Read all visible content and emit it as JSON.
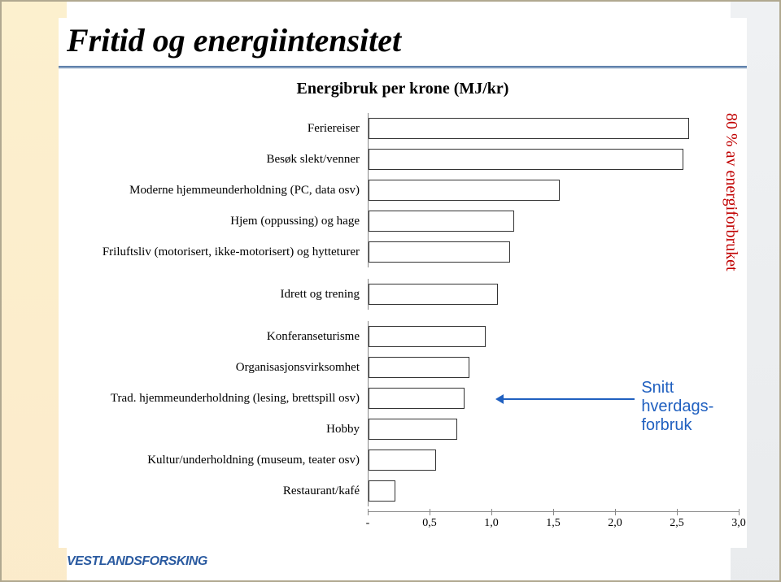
{
  "title": "Fritid og energiintensitet",
  "subtitle": "Energibruk per krone (MJ/kr)",
  "chart": {
    "type": "bar-horizontal",
    "xlim": [
      0,
      3.0
    ],
    "ticks": [
      0,
      0.5,
      1.0,
      1.5,
      2.0,
      2.5,
      3.0
    ],
    "tick_labels": [
      "-",
      "0,5",
      "1,0",
      "1,5",
      "2,0",
      "2,5",
      "3,0"
    ],
    "bar_fill": "#ffffff",
    "bar_border": "#333333",
    "grid_color": "#888888",
    "background_color": "#ffffff",
    "label_fontsize": 15,
    "tick_fontsize": 14,
    "group_gap_after_index": 4,
    "group_gap_after_index2": 5,
    "categories": [
      {
        "label": "Feriereiser",
        "value": 2.6
      },
      {
        "label": "Besøk slekt/venner",
        "value": 2.55
      },
      {
        "label": "Moderne hjemmeunderholdning (PC, data osv)",
        "value": 1.55
      },
      {
        "label": "Hjem (oppussing) og hage",
        "value": 1.18
      },
      {
        "label": "Friluftsliv (motorisert, ikke-motorisert) og hytteturer",
        "value": 1.15
      },
      {
        "label": "Idrett og trening",
        "value": 1.05
      },
      {
        "label": "Konferanseturisme",
        "value": 0.95
      },
      {
        "label": "Organisasjonsvirksomhet",
        "value": 0.82
      },
      {
        "label": "Trad. hjemmeunderholdning (lesing, brettspill osv)",
        "value": 0.78
      },
      {
        "label": "Hobby",
        "value": 0.72
      },
      {
        "label": "Kultur/underholdning (museum, teater osv)",
        "value": 0.55
      },
      {
        "label": "Restaurant/kafé",
        "value": 0.22
      }
    ]
  },
  "side_note": {
    "text": "80 % av energiforbruket",
    "color": "#c00000",
    "fontsize": 20
  },
  "callout": {
    "line1": "Snitt hverdags-",
    "line2": "forbruk",
    "color": "#2060c0",
    "fontsize": 20
  },
  "logo_text": "VESTLANDSFORSKING"
}
